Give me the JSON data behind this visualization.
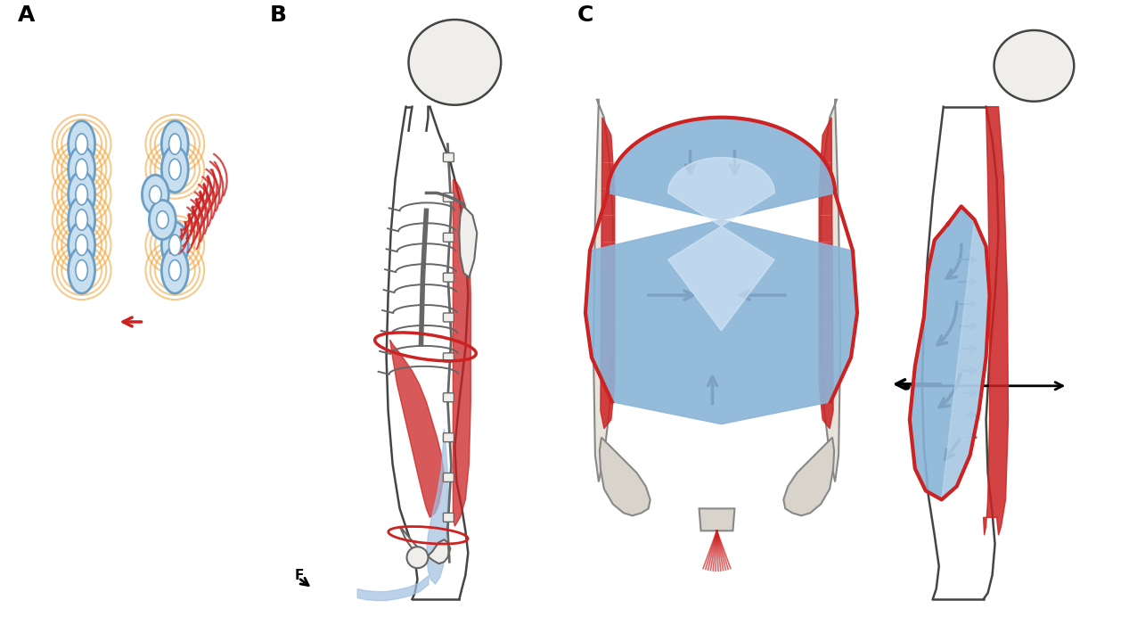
{
  "bg_color": "#ffffff",
  "label_A": "A",
  "label_B": "B",
  "label_C": "C",
  "chain_blue_fill": "#c8dff0",
  "chain_blue_edge": "#6aA0c8",
  "chain_orange": "#f0a030",
  "red_color": "#cc2222",
  "blue_color": "#a0c0e0",
  "blue_dark": "#6090b8",
  "arrow_black": "#111111",
  "body_outline": "#444444",
  "bone_fill": "#f0eeea",
  "bone_edge": "#666666",
  "muscle_red": "#cc2222",
  "abdo_blue_light": "#c8dcf0",
  "abdo_blue_mid": "#88aad0",
  "abdo_blue_dark": "#5580b8"
}
